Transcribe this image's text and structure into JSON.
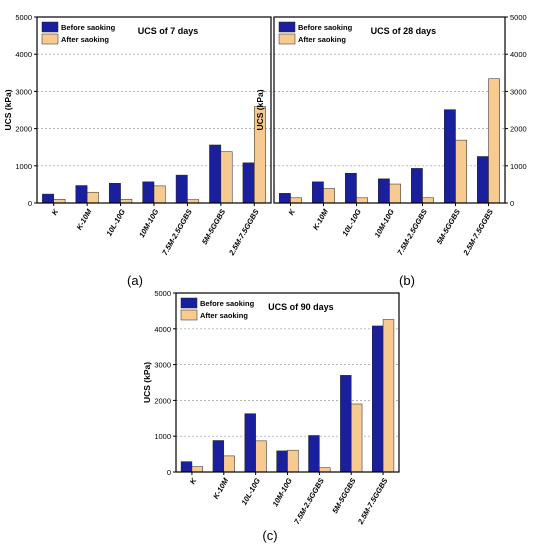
{
  "figure": {
    "panel_labels": [
      "(a)",
      "(b)",
      "(c)"
    ]
  },
  "colors": {
    "before": "#1a1f9e",
    "after": "#f6ca90",
    "frame": "#000000",
    "grid": "#9a9a9a"
  },
  "chart_data": [
    {
      "type": "bar",
      "title": "UCS of 7 days",
      "ylabel": "UCS (kPa)",
      "xlabel": "",
      "ylim": [
        0,
        5000
      ],
      "yticks": [
        0,
        1000,
        2000,
        3000,
        4000,
        5000
      ],
      "grid": true,
      "legend_position": "top-left",
      "categories": [
        "K",
        "K-10M",
        "10L-10G",
        "10M-10G",
        "7.5M-2.5GGBS",
        "5M-5GGBS",
        "2.5M-7.5GGBS"
      ],
      "series": [
        {
          "name": "Before saoking",
          "values": [
            240,
            470,
            530,
            570,
            750,
            1560,
            1080
          ]
        },
        {
          "name": "After saoking",
          "values": [
            100,
            290,
            100,
            460,
            90,
            1380,
            2590
          ]
        }
      ]
    },
    {
      "type": "bar",
      "title": "UCS of 28 days",
      "ylabel": "UCS (kPa)",
      "xlabel": "",
      "ylim": [
        0,
        5000
      ],
      "yticks": [
        0,
        1000,
        2000,
        3000,
        4000,
        5000
      ],
      "grid": true,
      "legend_position": "top-left",
      "categories": [
        "K",
        "K-10M",
        "10L-10G",
        "10M-10G",
        "7.5M-2.5GGBS",
        "5M-5GGBS",
        "2.5M-7.5GGBS"
      ],
      "series": [
        {
          "name": "Before saoking",
          "values": [
            260,
            570,
            800,
            650,
            930,
            2510,
            1250
          ]
        },
        {
          "name": "After saoking",
          "values": [
            140,
            390,
            140,
            510,
            140,
            1690,
            3340
          ]
        }
      ]
    },
    {
      "type": "bar",
      "title": "UCS of 90 days",
      "ylabel": "UCS (kPa)",
      "xlabel": "",
      "ylim": [
        0,
        5000
      ],
      "yticks": [
        0,
        1000,
        2000,
        3000,
        4000,
        5000
      ],
      "grid": true,
      "legend_position": "top-left",
      "categories": [
        "K",
        "K-10M",
        "10L-10G",
        "10M-10G",
        "7.5M-2.5GGBS",
        "5M-5GGBS",
        "2.5M-7.5GGBS"
      ],
      "series": [
        {
          "name": "Before saoking",
          "values": [
            290,
            880,
            1630,
            590,
            1020,
            2700,
            4080
          ]
        },
        {
          "name": "After saoking",
          "values": [
            150,
            450,
            870,
            610,
            120,
            1900,
            4260
          ]
        }
      ]
    }
  ]
}
